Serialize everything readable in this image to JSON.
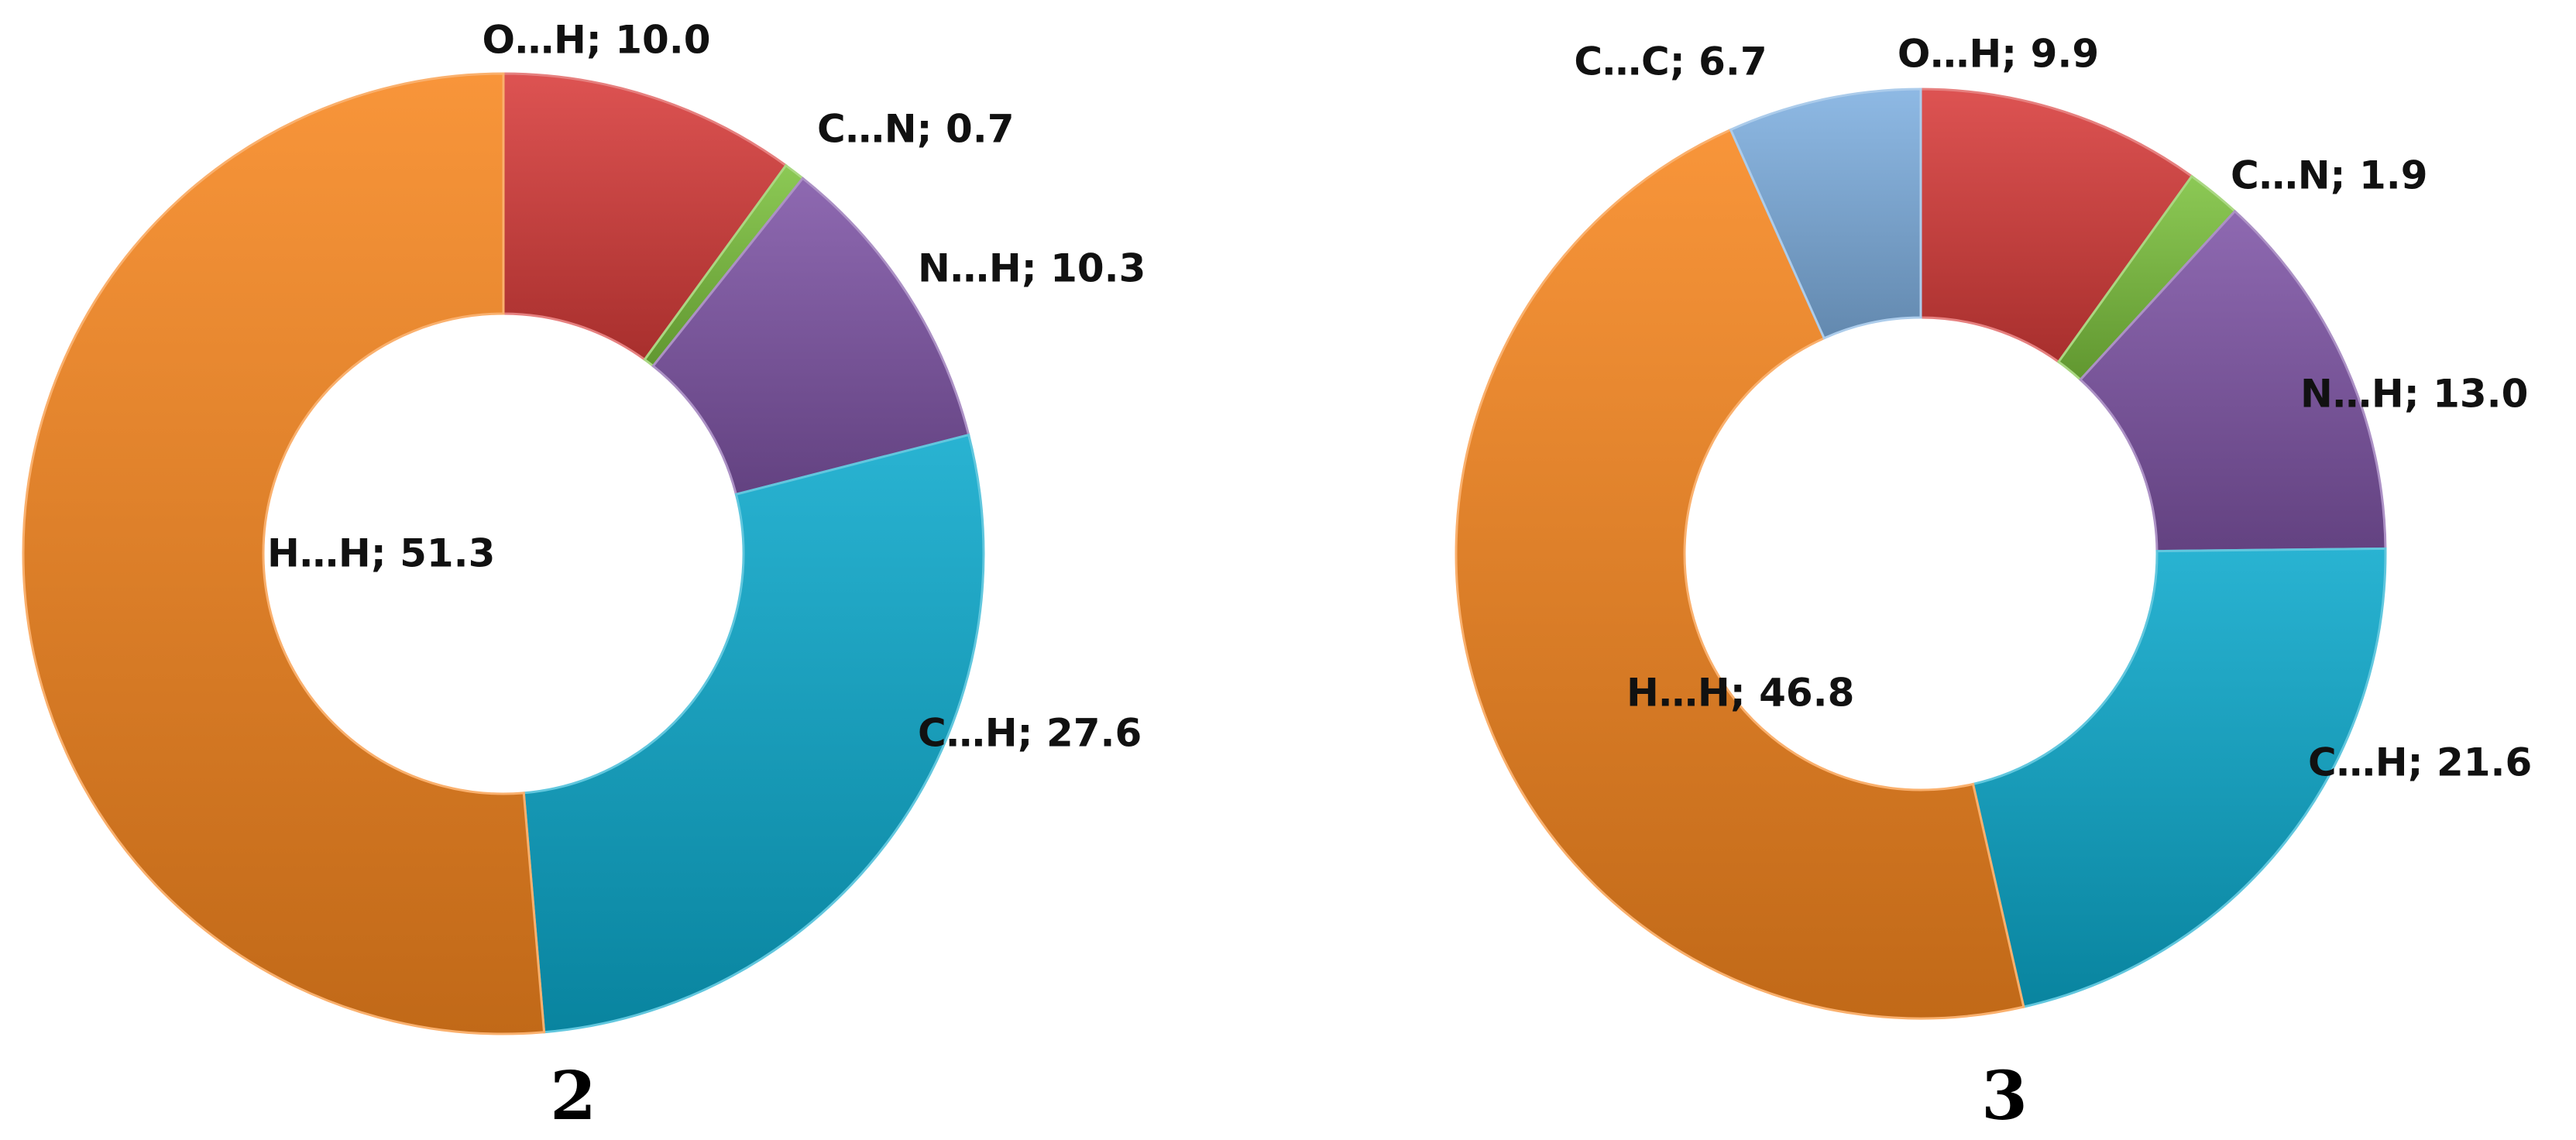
{
  "chart_data": [
    {
      "type": "pie",
      "panel_label": "2",
      "slices": [
        {
          "name": "O…H",
          "value": 10.0,
          "label": "O…H; 10.0",
          "color": "#d83c3a"
        },
        {
          "name": "C…N",
          "value": 0.7,
          "label": "C…N; 0.7",
          "color": "#7cc23e"
        },
        {
          "name": "N…H",
          "value": 10.3,
          "label": "N…H; 10.3",
          "color": "#7f55a6"
        },
        {
          "name": "C…H",
          "value": 27.6,
          "label": "C…H; 27.6",
          "color": "#0ca9cc"
        },
        {
          "name": "H…H",
          "value": 51.3,
          "label": "H…H; 51.3",
          "color": "#f7861f"
        }
      ]
    },
    {
      "type": "pie",
      "panel_label": "3",
      "slices": [
        {
          "name": "O…H",
          "value": 9.9,
          "label": "O…H; 9.9",
          "color": "#d83c3a"
        },
        {
          "name": "C…N",
          "value": 1.9,
          "label": "C…N; 1.9",
          "color": "#7cc23e"
        },
        {
          "name": "N…H",
          "value": 13.0,
          "label": "N…H; 13.0",
          "color": "#7f55a6"
        },
        {
          "name": "C…H",
          "value": 21.6,
          "label": "C…H; 21.6",
          "color": "#0ca9cc"
        },
        {
          "name": "H…H",
          "value": 46.8,
          "label": "H…H; 46.8",
          "color": "#f7861f"
        },
        {
          "name": "C…C",
          "value": 6.7,
          "label": "C…C; 6.7",
          "color": "#7fb0e0"
        }
      ]
    }
  ]
}
